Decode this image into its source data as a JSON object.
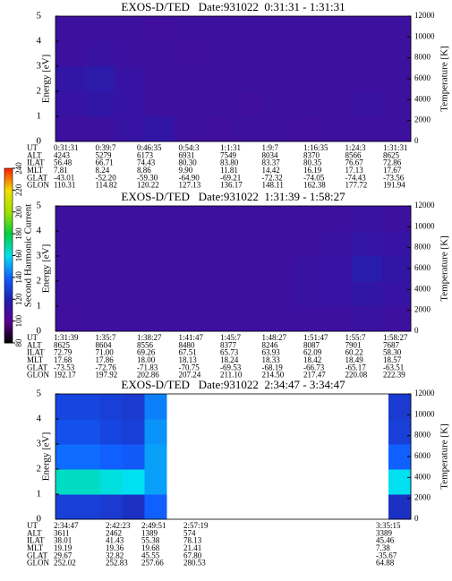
{
  "colorbar": {
    "label": "Second Harmonic Current",
    "lim": [
      80,
      240
    ],
    "ticks": [
      80,
      100,
      120,
      140,
      160,
      180,
      200,
      220,
      240
    ],
    "colors": [
      "#000000",
      "#5a0090",
      "#2020b0",
      "#1060ff",
      "#00e0f0",
      "#00d040",
      "#a0e000",
      "#f0e000",
      "#ff2000"
    ]
  },
  "chart_data": [
    {
      "type": "heatmap",
      "title": "EXOS-D/TED   Date:931022  0:31:31 - 1:31:31",
      "ylabel": "Energy [eV]",
      "y2label": "Temperature [K]",
      "ylim": [
        0,
        5
      ],
      "yticks": [
        0,
        1,
        2,
        3,
        4,
        5
      ],
      "y2lim": [
        0,
        12000
      ],
      "y2ticks": [
        0,
        2000,
        4000,
        6000,
        8000,
        10000,
        12000
      ],
      "energy_edges": [
        0,
        1,
        2,
        3,
        4,
        5
      ],
      "z": [
        [
          110,
          110,
          112,
          114,
          110,
          109,
          110,
          110,
          109,
          110,
          110,
          110
        ],
        [
          112,
          114,
          112,
          110,
          110,
          110,
          109,
          110,
          110,
          110,
          111,
          110
        ],
        [
          114,
          116,
          112,
          110,
          110,
          110,
          110,
          110,
          110,
          110,
          110,
          110
        ],
        [
          110,
          111,
          110,
          110,
          109,
          110,
          110,
          110,
          110,
          110,
          110,
          110
        ],
        [
          110,
          110,
          110,
          109,
          110,
          110,
          110,
          110,
          110,
          110,
          110,
          110
        ]
      ],
      "orbit": {
        "labels": [
          "UT",
          "ALT",
          "ILAT",
          "MLT",
          "GLAT",
          "GLON"
        ],
        "rows": [
          [
            "0:31:31",
            "0:39:7",
            "0:46:35",
            "0:54:3",
            "1:1:31",
            "1:9:7",
            "1:16:35",
            "1:24:3",
            "1:31:31"
          ],
          [
            "4243",
            "5279",
            "6173",
            "6931",
            "7549",
            "8034",
            "8370",
            "8566",
            "8625"
          ],
          [
            "56.48",
            "66.71",
            "74.43",
            "80.30",
            "83.80",
            "83.37",
            "80.35",
            "76.67",
            "72.86"
          ],
          [
            "7.81",
            "8.24",
            "8.86",
            "9.90",
            "11.81",
            "14.42",
            "16.19",
            "17.13",
            "17.67"
          ],
          [
            "-43.01",
            "-52.20",
            "-59.30",
            "-64.90",
            "-69.21",
            "-72.32",
            "-74.05",
            "-74.43",
            "-73.56"
          ],
          [
            "110.31",
            "114.82",
            "120.22",
            "127.13",
            "136.17",
            "148.11",
            "162.38",
            "177.72",
            "191.94"
          ]
        ]
      }
    },
    {
      "type": "heatmap",
      "title": "EXOS-D/TED   Date:931022  1:31:39 - 1:58:27",
      "ylabel": "Energy [eV]",
      "y2label": "Temperature [K]",
      "ylim": [
        0,
        5
      ],
      "yticks": [
        0,
        1,
        2,
        3,
        4,
        5
      ],
      "y2lim": [
        0,
        12000
      ],
      "y2ticks": [
        0,
        2000,
        4000,
        6000,
        8000,
        10000,
        12000
      ],
      "energy_edges": [
        0,
        1,
        2,
        3,
        4,
        5
      ],
      "z": [
        [
          109,
          110,
          110,
          110,
          110,
          110,
          110,
          110,
          110,
          110,
          111,
          110
        ],
        [
          110,
          110,
          110,
          110,
          110,
          110,
          110,
          110,
          111,
          112,
          114,
          112
        ],
        [
          110,
          110,
          110,
          110,
          110,
          110,
          110,
          110,
          111,
          112,
          118,
          114
        ],
        [
          110,
          110,
          110,
          110,
          110,
          110,
          110,
          110,
          110,
          111,
          113,
          112
        ],
        [
          110,
          110,
          110,
          110,
          110,
          110,
          110,
          110,
          110,
          110,
          111,
          110
        ]
      ],
      "orbit": {
        "labels": [
          "UT",
          "ALT",
          "ILAT",
          "MLT",
          "GLAT",
          "GLON"
        ],
        "rows": [
          [
            "1:31:39",
            "1:35:7",
            "1:38:27",
            "1:41:47",
            "1:45:7",
            "1:48:27",
            "1:51:47",
            "1:55:7",
            "1:58:27"
          ],
          [
            "8625",
            "8604",
            "8556",
            "8480",
            "8377",
            "8246",
            "8087",
            "7901",
            "7687"
          ],
          [
            "72.79",
            "71.00",
            "69.26",
            "67.51",
            "65.73",
            "63.93",
            "62.09",
            "60.22",
            "58.30"
          ],
          [
            "17.68",
            "17.86",
            "18.00",
            "18.13",
            "18.24",
            "18.33",
            "18.42",
            "18.49",
            "18.57"
          ],
          [
            "-73.53",
            "-72.76",
            "-71.83",
            "-70.75",
            "-69.53",
            "-68.19",
            "-66.73",
            "-65.17",
            "-63.51"
          ],
          [
            "192.17",
            "197.92",
            "202.86",
            "207.24",
            "211.10",
            "214.50",
            "217.47",
            "220.08",
            "222.39"
          ]
        ]
      }
    },
    {
      "type": "heatmap",
      "title": "EXOS-D/TED   Date:931022  2:34:47 - 3:34:47",
      "ylabel": "Energy [eV]",
      "y2label": "Temperature [K]",
      "ylim": [
        0,
        5
      ],
      "yticks": [
        0,
        1,
        2,
        3,
        4,
        5
      ],
      "y2lim": [
        0,
        12000
      ],
      "y2ticks": [
        0,
        2000,
        4000,
        6000,
        8000,
        10000,
        12000
      ],
      "energy_edges": [
        0,
        1,
        2,
        3,
        4,
        5
      ],
      "z": [
        [
          130,
          130,
          128,
          125,
          140,
          null,
          null,
          null,
          null,
          null,
          null,
          null,
          null,
          null,
          null,
          125
        ],
        [
          165,
          165,
          162,
          160,
          150,
          null,
          null,
          null,
          null,
          null,
          null,
          null,
          null,
          null,
          null,
          160
        ],
        [
          142,
          142,
          140,
          138,
          150,
          null,
          null,
          null,
          null,
          null,
          null,
          null,
          null,
          null,
          null,
          140
        ],
        [
          135,
          135,
          132,
          130,
          148,
          null,
          null,
          null,
          null,
          null,
          null,
          null,
          null,
          null,
          null,
          130
        ],
        [
          132,
          132,
          130,
          128,
          145,
          null,
          null,
          null,
          null,
          null,
          null,
          null,
          null,
          null,
          null,
          128
        ]
      ],
      "orbit": {
        "labels": [
          "UT",
          "ALT",
          "ILAT",
          "MLT",
          "GLAT",
          "GLON"
        ],
        "rows": [
          [
            "2:34:47",
            "2:42:23",
            "2:49:51",
            "2:57:19",
            "3:35:15"
          ],
          [
            "3611",
            "2462",
            "1389",
            "574",
            "3389"
          ],
          [
            "38.01",
            "41.43",
            "55.38",
            "78.13",
            "45.46"
          ],
          [
            "19.19",
            "19.36",
            "19.68",
            "21.41",
            "7.38"
          ],
          [
            "29.67",
            "32.82",
            "45.55",
            "67.80",
            "-35.67"
          ],
          [
            "252.02",
            "252.83",
            "257.66",
            "280.53",
            "64.88"
          ]
        ]
      }
    }
  ]
}
